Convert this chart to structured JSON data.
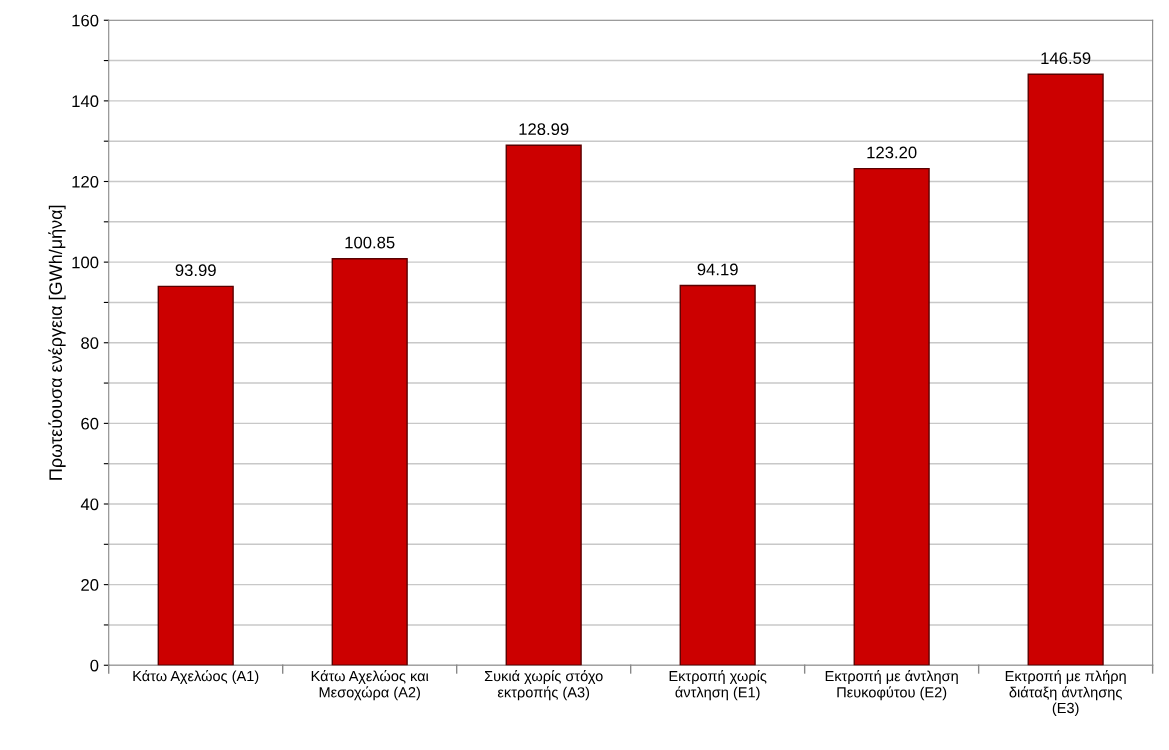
{
  "chart_data": {
    "type": "bar",
    "ylabel": "Πρωτεύουσα ενέργεια [GWh/μήνα]",
    "categories": [
      "Κάτω Αχελώος (A1)",
      "Κάτω Αχελώος και\nΜεσοχώρα (A2)",
      "Συκιά χωρίς στόχο\nεκτροπής (A3)",
      "Εκτροπή χωρίς\nάντληση (E1)",
      "Εκτροπή με άντληση\nΠευκοφύτου (E2)",
      "Εκτροπή με πλήρη\nδιάταξη άντλησης\n(E3)"
    ],
    "values": [
      93.99,
      100.85,
      128.99,
      94.19,
      123.2,
      146.59
    ],
    "value_labels": [
      "93.99",
      "100.85",
      "128.99",
      "94.19",
      "123.20",
      "146.59"
    ],
    "color": "#cc0000",
    "ylim": [
      0,
      160
    ],
    "yticks": [
      0,
      {
        "value": 10,
        "label": null
      },
      20,
      {
        "value": 30,
        "label": null
      },
      40,
      {
        "value": 50,
        "label": null
      },
      60,
      {
        "value": 70,
        "label": null
      },
      80,
      {
        "value": 90,
        "label": null
      },
      100,
      {
        "value": 110,
        "label": null
      },
      120,
      {
        "value": 130,
        "label": null
      },
      140,
      {
        "value": 150,
        "label": null
      },
      160
    ],
    "grid": "y"
  }
}
